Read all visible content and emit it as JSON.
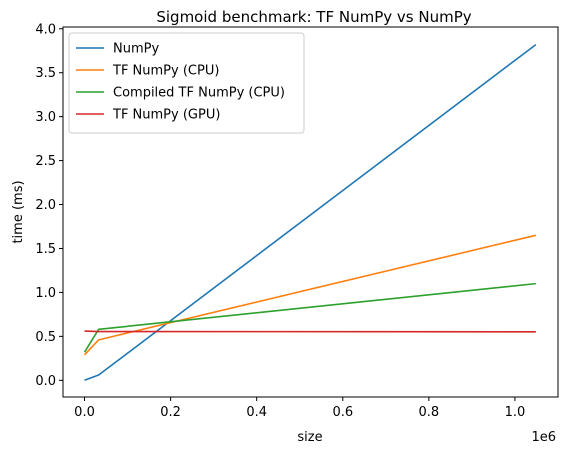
{
  "chart_data": {
    "type": "line",
    "title": "Sigmoid benchmark: TF NumPy vs NumPy",
    "xlabel": "size",
    "ylabel": "time (ms)",
    "x_offset_text": "1e6",
    "x_scale": 1000000,
    "xlim": [
      -50000,
      1100000
    ],
    "ylim": [
      -0.19,
      4.02
    ],
    "x_ticks": [
      0,
      200000,
      400000,
      600000,
      800000,
      1000000
    ],
    "x_tick_labels": [
      "0.0",
      "0.2",
      "0.4",
      "0.6",
      "0.8",
      "1.0"
    ],
    "y_ticks": [
      0,
      0.5,
      1.0,
      1.5,
      2.0,
      2.5,
      3.0,
      3.5,
      4.0
    ],
    "y_tick_labels": [
      "0.0",
      "0.5",
      "1.0",
      "1.5",
      "2.0",
      "2.5",
      "3.0",
      "3.5",
      "4.0"
    ],
    "grid": false,
    "legend_position": "upper-left",
    "series": [
      {
        "name": "NumPy",
        "color": "#1f77b4",
        "x": [
          1,
          32768,
          1048576
        ],
        "y": [
          0.0,
          0.06,
          3.82
        ]
      },
      {
        "name": "TF NumPy (CPU)",
        "color": "#ff7f0e",
        "x": [
          1,
          32768,
          1048576
        ],
        "y": [
          0.29,
          0.46,
          1.65
        ]
      },
      {
        "name": "Compiled TF NumPy (CPU)",
        "color": "#2ca02c",
        "x": [
          1,
          32768,
          1048576
        ],
        "y": [
          0.32,
          0.58,
          1.1
        ]
      },
      {
        "name": "TF NumPy (GPU)",
        "color": "#d62728",
        "x": [
          1,
          32768,
          1048576
        ],
        "y": [
          0.56,
          0.555,
          0.552
        ]
      }
    ]
  }
}
